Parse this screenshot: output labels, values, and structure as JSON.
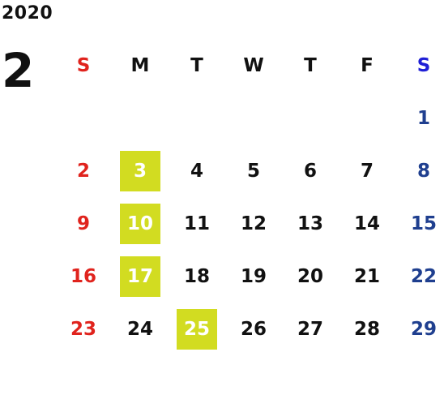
{
  "calendar": {
    "year": "2020",
    "month": "2",
    "weekdays": [
      "S",
      "M",
      "T",
      "W",
      "T",
      "F",
      "S"
    ],
    "weeks": [
      [
        "",
        "",
        "",
        "",
        "",
        "",
        "1"
      ],
      [
        "2",
        "3",
        "4",
        "5",
        "6",
        "7",
        "8"
      ],
      [
        "9",
        "10",
        "11",
        "12",
        "13",
        "14",
        "15"
      ],
      [
        "16",
        "17",
        "18",
        "19",
        "20",
        "21",
        "22"
      ],
      [
        "23",
        "24",
        "25",
        "26",
        "27",
        "28",
        "29"
      ]
    ],
    "highlighted_days": [
      "3",
      "10",
      "17",
      "25"
    ],
    "colors": {
      "sunday": "#e0231d",
      "saturday_header": "#1f1fd6",
      "saturday": "#1f3f8f",
      "highlight": "#d2dc21",
      "text": "#111111"
    }
  }
}
